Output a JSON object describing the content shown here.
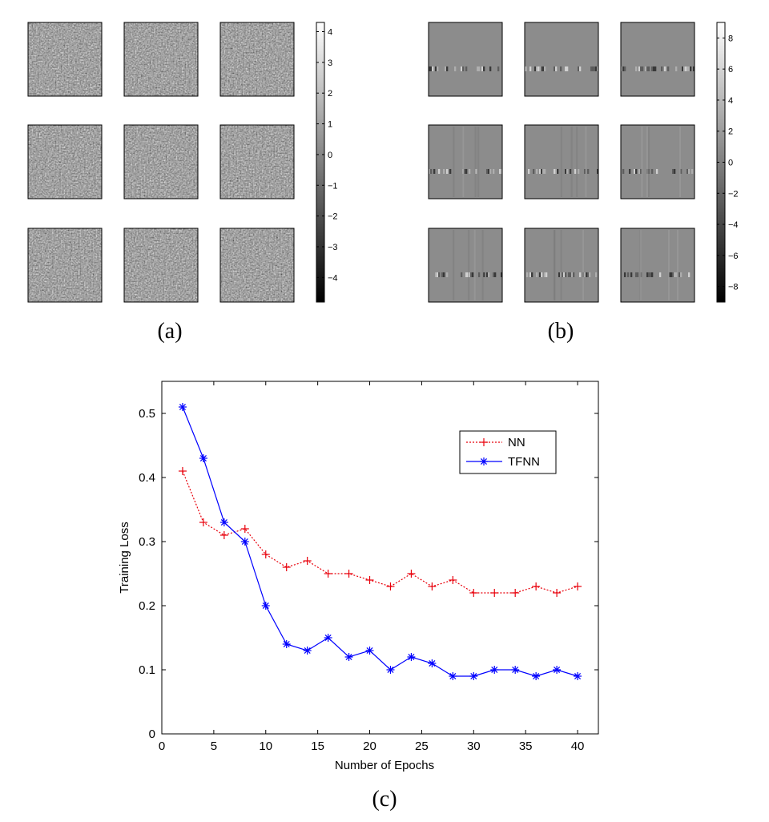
{
  "captions": {
    "a": "(a)",
    "b": "(b)",
    "c": "(c)"
  },
  "panel_a": {
    "type": "heatmap",
    "grid": "3x3",
    "colorbar_ticks": [
      "4",
      "3",
      "2",
      "1",
      "0",
      "−1",
      "−2",
      "−3",
      "−4"
    ],
    "clim": [
      -4.8,
      4.3
    ],
    "colormap": "gray"
  },
  "panel_b": {
    "type": "heatmap",
    "grid": "3x3",
    "colorbar_ticks": [
      "8",
      "6",
      "4",
      "2",
      "0",
      "−2",
      "−4",
      "−6",
      "−8"
    ],
    "clim": [
      -9,
      9
    ],
    "colormap": "gray"
  },
  "chart_data": {
    "type": "line",
    "xlabel": "Number of Epochs",
    "ylabel": "Training Loss",
    "xlim": [
      0,
      42
    ],
    "ylim": [
      0,
      0.55
    ],
    "x_ticks": [
      0,
      5,
      10,
      15,
      20,
      25,
      30,
      35,
      40
    ],
    "y_ticks": [
      0,
      0.1,
      0.2,
      0.3,
      0.4,
      0.5
    ],
    "grid": false,
    "legend_position": "top-right",
    "x": [
      2,
      4,
      6,
      8,
      10,
      12,
      14,
      16,
      18,
      20,
      22,
      24,
      26,
      28,
      30,
      32,
      34,
      36,
      38,
      40
    ],
    "series": [
      {
        "name": "NN",
        "color": "#e8000b",
        "line": "dotted",
        "marker": "+",
        "values": [
          0.41,
          0.33,
          0.31,
          0.32,
          0.28,
          0.26,
          0.27,
          0.25,
          0.25,
          0.24,
          0.23,
          0.25,
          0.23,
          0.24,
          0.22,
          0.22,
          0.22,
          0.23,
          0.22,
          0.23
        ]
      },
      {
        "name": "TFNN",
        "color": "#0000ff",
        "line": "solid",
        "marker": "*",
        "values": [
          0.51,
          0.43,
          0.33,
          0.3,
          0.2,
          0.14,
          0.13,
          0.15,
          0.12,
          0.13,
          0.1,
          0.12,
          0.11,
          0.09,
          0.09,
          0.1,
          0.1,
          0.09,
          0.1,
          0.09
        ]
      }
    ]
  }
}
